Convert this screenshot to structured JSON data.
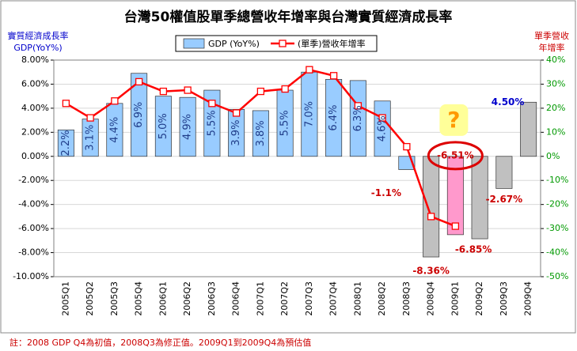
{
  "chart_data": {
    "type": "combo",
    "title": "台灣50權值股單季總營收年增率與台灣實質經濟成長率",
    "y_label": [
      "實質經濟成長率",
      "GDP(YoY%)"
    ],
    "y2_label": [
      "單季營收",
      "年增率"
    ],
    "categories": [
      "2005Q1",
      "2005Q2",
      "2005Q3",
      "2005Q4",
      "2006Q1",
      "2006Q2",
      "2006Q3",
      "2006Q4",
      "2007Q1",
      "2007Q2",
      "2007Q3",
      "2007Q4",
      "2008Q1",
      "2008Q2",
      "2008Q3",
      "2008Q4",
      "2009Q1",
      "2009Q2",
      "2009Q3",
      "2009Q4"
    ],
    "series": [
      {
        "name": "GDP (YoY%)",
        "type": "bar",
        "color": "#99ccff",
        "colors": [
          "#99ccff",
          "#99ccff",
          "#99ccff",
          "#99ccff",
          "#99ccff",
          "#99ccff",
          "#99ccff",
          "#99ccff",
          "#99ccff",
          "#99ccff",
          "#99ccff",
          "#99ccff",
          "#99ccff",
          "#99ccff",
          "#99ccff",
          "#c0c0c0",
          "#ff99cc",
          "#c0c0c0",
          "#c0c0c0",
          "#c0c0c0"
        ],
        "values": [
          2.2,
          3.1,
          4.4,
          6.9,
          5.0,
          4.9,
          5.5,
          3.9,
          3.8,
          5.5,
          7.0,
          6.4,
          6.3,
          4.6,
          -1.1,
          -8.36,
          -6.51,
          -6.85,
          -2.67,
          4.5
        ],
        "value_labels": [
          "2.2%",
          "3.1%",
          "4.4%",
          "6.9%",
          "5.0%",
          "4.9%",
          "5.5%",
          "3.9%",
          "3.8%",
          "5.5%",
          "7.0%",
          "6.4%",
          "6.3%",
          "4.6%",
          "-1.1%",
          "-8.36%",
          "-6.51%",
          "-6.85%",
          "-2.67%",
          "4.50%"
        ]
      },
      {
        "name": "(單季)營收年增率",
        "type": "line",
        "color": "#ff0000",
        "axis": "y2",
        "values": [
          22,
          16,
          23,
          31,
          27,
          27.5,
          22,
          18,
          27,
          28,
          36,
          33.5,
          21,
          16,
          4,
          -25,
          -29,
          null,
          null,
          null
        ]
      }
    ],
    "ylim": [
      -10,
      8
    ],
    "yticks": [
      {
        "value": -10,
        "label": "-10.00%"
      },
      {
        "value": -8,
        "label": "-8.00%"
      },
      {
        "value": -6,
        "label": "-6.00%"
      },
      {
        "value": -4,
        "label": "-4.00%"
      },
      {
        "value": -2,
        "label": "-2.00%"
      },
      {
        "value": 0,
        "label": "0.00%"
      },
      {
        "value": 2,
        "label": "2.00%"
      },
      {
        "value": 4,
        "label": "4.00%"
      },
      {
        "value": 6,
        "label": "6.00%"
      },
      {
        "value": 8,
        "label": "8.00%"
      }
    ],
    "y2lim": [
      -50,
      40
    ],
    "y2ticks": [
      {
        "value": -50,
        "label": "-50%"
      },
      {
        "value": -40,
        "label": "-40%"
      },
      {
        "value": -30,
        "label": "-30%"
      },
      {
        "value": -20,
        "label": "-20%"
      },
      {
        "value": -10,
        "label": "-10%"
      },
      {
        "value": 0,
        "label": "0%"
      },
      {
        "value": 10,
        "label": "10%"
      },
      {
        "value": 20,
        "label": "20%"
      },
      {
        "value": 30,
        "label": "30%"
      },
      {
        "value": 40,
        "label": "40%"
      }
    ],
    "grid": true,
    "legend": "top",
    "annotation": "?",
    "note": "註：2008 GDP Q4為初值，2008Q3為修正值。2009Q1到2009Q4為預估值"
  }
}
